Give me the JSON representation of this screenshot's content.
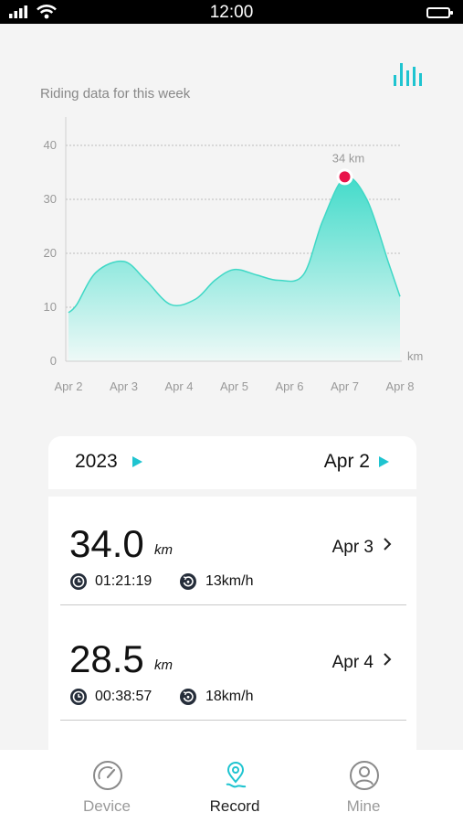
{
  "status_bar": {
    "time": "12:00"
  },
  "chart_data": {
    "type": "area",
    "title": "Riding data for this week",
    "unit": "km",
    "categories": [
      "Apr 2",
      "Apr 3",
      "Apr 4",
      "Apr 5",
      "Apr 6",
      "Apr 7",
      "Apr 8"
    ],
    "yticks": [
      0,
      10,
      20,
      30,
      40
    ],
    "ylim": [
      0,
      45
    ],
    "curve": [
      {
        "x": 0.0,
        "y": 9
      },
      {
        "x": 0.15,
        "y": 10.5
      },
      {
        "x": 0.5,
        "y": 16.5
      },
      {
        "x": 1.0,
        "y": 18.5
      },
      {
        "x": 1.4,
        "y": 15
      },
      {
        "x": 1.85,
        "y": 10.5
      },
      {
        "x": 2.3,
        "y": 11.5
      },
      {
        "x": 2.65,
        "y": 15
      },
      {
        "x": 3.0,
        "y": 17
      },
      {
        "x": 3.4,
        "y": 16
      },
      {
        "x": 3.8,
        "y": 15
      },
      {
        "x": 4.25,
        "y": 16
      },
      {
        "x": 4.6,
        "y": 26
      },
      {
        "x": 5.0,
        "y": 34
      },
      {
        "x": 5.4,
        "y": 30
      },
      {
        "x": 5.8,
        "y": 18
      },
      {
        "x": 6.0,
        "y": 12
      }
    ],
    "peak": {
      "x": 5.0,
      "y": 34,
      "label": "34 km"
    },
    "grid": true,
    "colors": {
      "line": "#3fd8c6",
      "fill_top": "#43dbca",
      "fill_bottom": "#eef9f7",
      "peak": "#e8144b",
      "grid": "#bdbdbd",
      "axis_text": "#999999"
    }
  },
  "filters": {
    "year": "2023",
    "date": "Apr 2"
  },
  "records": [
    {
      "distance": "34.0",
      "unit": "km",
      "date": "Apr 3",
      "duration": "01:21:19",
      "speed": "13km/h"
    },
    {
      "distance": "28.5",
      "unit": "km",
      "date": "Apr 4",
      "duration": "00:38:57",
      "speed": "18km/h"
    }
  ],
  "tabs": [
    {
      "label": "Device",
      "icon": "speedometer-icon",
      "active": false
    },
    {
      "label": "Record",
      "icon": "location-pin-icon",
      "active": true
    },
    {
      "label": "Mine",
      "icon": "user-icon",
      "active": false
    }
  ],
  "accent_color": "#1fc4d0"
}
